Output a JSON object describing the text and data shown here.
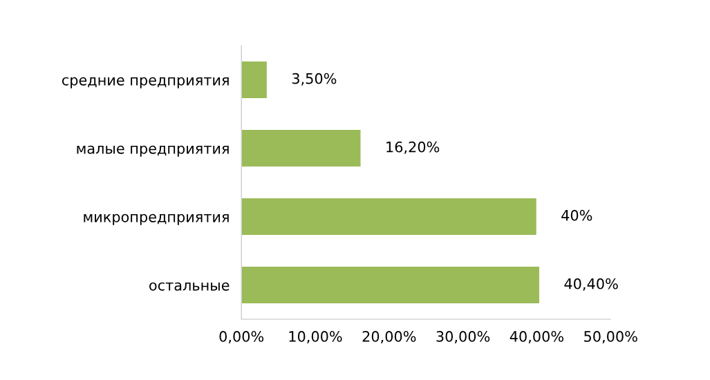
{
  "chart_data": {
    "type": "bar",
    "orientation": "horizontal",
    "categories": [
      "средние предприятия",
      "малые предприятия",
      "микропредприятия",
      "остальные"
    ],
    "values": [
      3.5,
      16.2,
      40,
      40.4
    ],
    "value_labels": [
      "3,50%",
      "16,20%",
      "40%",
      "40,40%"
    ],
    "color": "#9bbb59",
    "xlim": [
      0,
      50
    ],
    "xticks": [
      {
        "value": 0,
        "label": "0,00%"
      },
      {
        "value": 10,
        "label": "10,00%"
      },
      {
        "value": 20,
        "label": "20,00%"
      },
      {
        "value": 30,
        "label": "30,00%"
      },
      {
        "value": 40,
        "label": "40,00%"
      },
      {
        "value": 50,
        "label": "50,00%"
      }
    ],
    "grid": false,
    "legend": false
  }
}
